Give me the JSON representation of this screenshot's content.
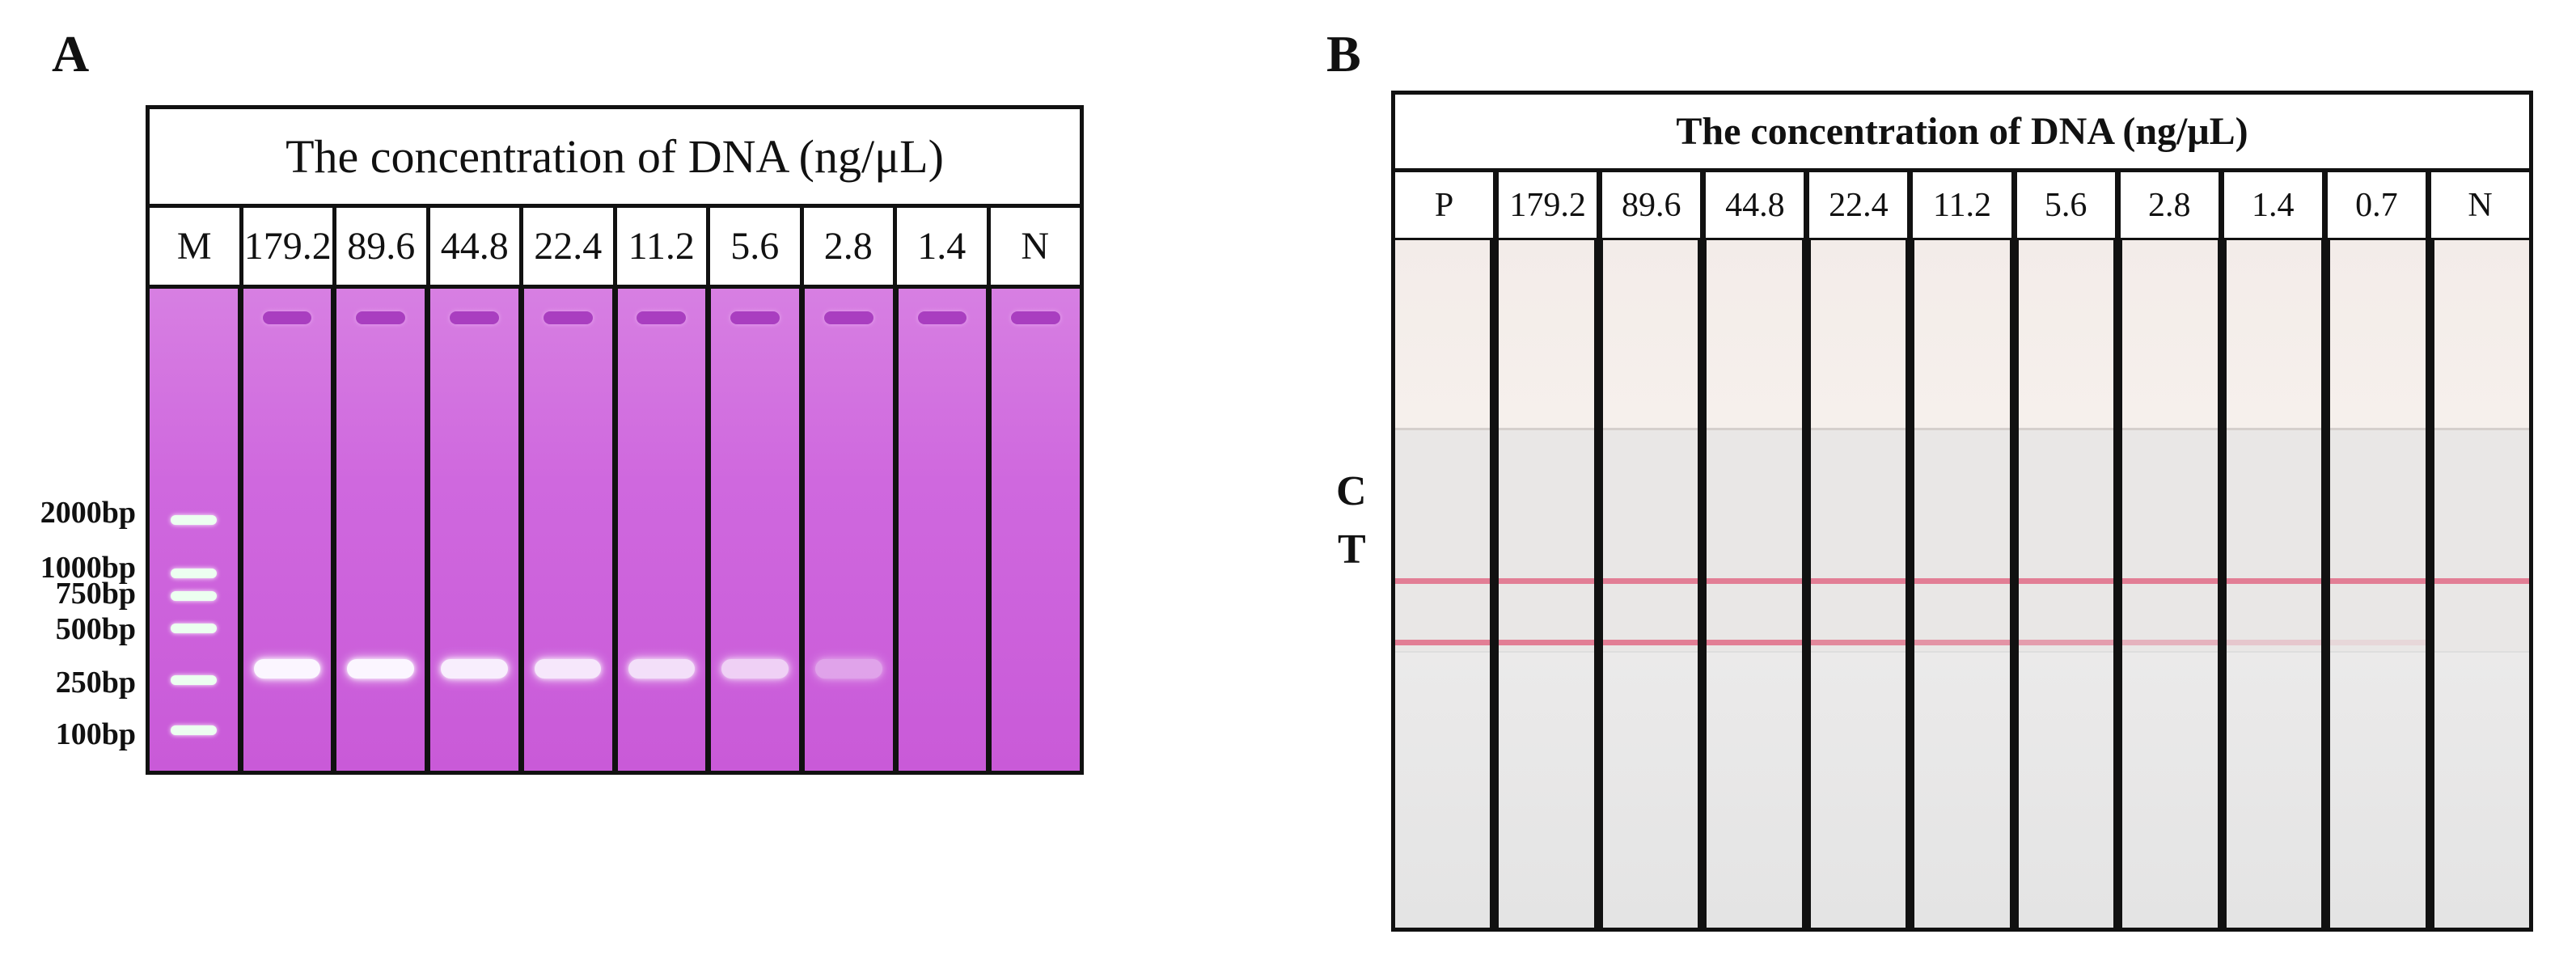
{
  "panel_a": {
    "letter": "A",
    "title": "The concentration of DNA (ng/μL)",
    "lanes": [
      {
        "label": "M",
        "type": "ladder"
      },
      {
        "label": "179.2",
        "band": 1.0
      },
      {
        "label": "89.6",
        "band": 1.0
      },
      {
        "label": "44.8",
        "band": 0.95
      },
      {
        "label": "22.4",
        "band": 0.9
      },
      {
        "label": "11.2",
        "band": 0.85
      },
      {
        "label": "5.6",
        "band": 0.75
      },
      {
        "label": "2.8",
        "band": 0.45
      },
      {
        "label": "1.4",
        "band": 0
      },
      {
        "label": "N",
        "band": 0
      }
    ],
    "ladder": [
      "2000bp",
      "1000bp",
      "750bp",
      "500bp",
      "250bp",
      "100bp"
    ]
  },
  "panel_b": {
    "letter": "B",
    "title": "The concentration of DNA (ng/μL)",
    "line_labels": {
      "c": "C",
      "t": "T"
    },
    "lanes": [
      {
        "label": "P",
        "c": 1,
        "t": 1
      },
      {
        "label": "179.2",
        "c": 1,
        "t": 1
      },
      {
        "label": "89.6",
        "c": 1,
        "t": 1
      },
      {
        "label": "44.8",
        "c": 1,
        "t": 1
      },
      {
        "label": "22.4",
        "c": 1,
        "t": 0.9
      },
      {
        "label": "11.2",
        "c": 1,
        "t": 0.8
      },
      {
        "label": "5.6",
        "c": 1,
        "t": 0.7
      },
      {
        "label": "2.8",
        "c": 1,
        "t": 0.5
      },
      {
        "label": "1.4",
        "c": 1,
        "t": 0.3
      },
      {
        "label": "0.7",
        "c": 1,
        "t": 0.15
      },
      {
        "label": "N",
        "c": 1,
        "t": 0
      }
    ],
    "colors": {
      "line": "#e06b86",
      "gel": "#c860d6"
    }
  }
}
